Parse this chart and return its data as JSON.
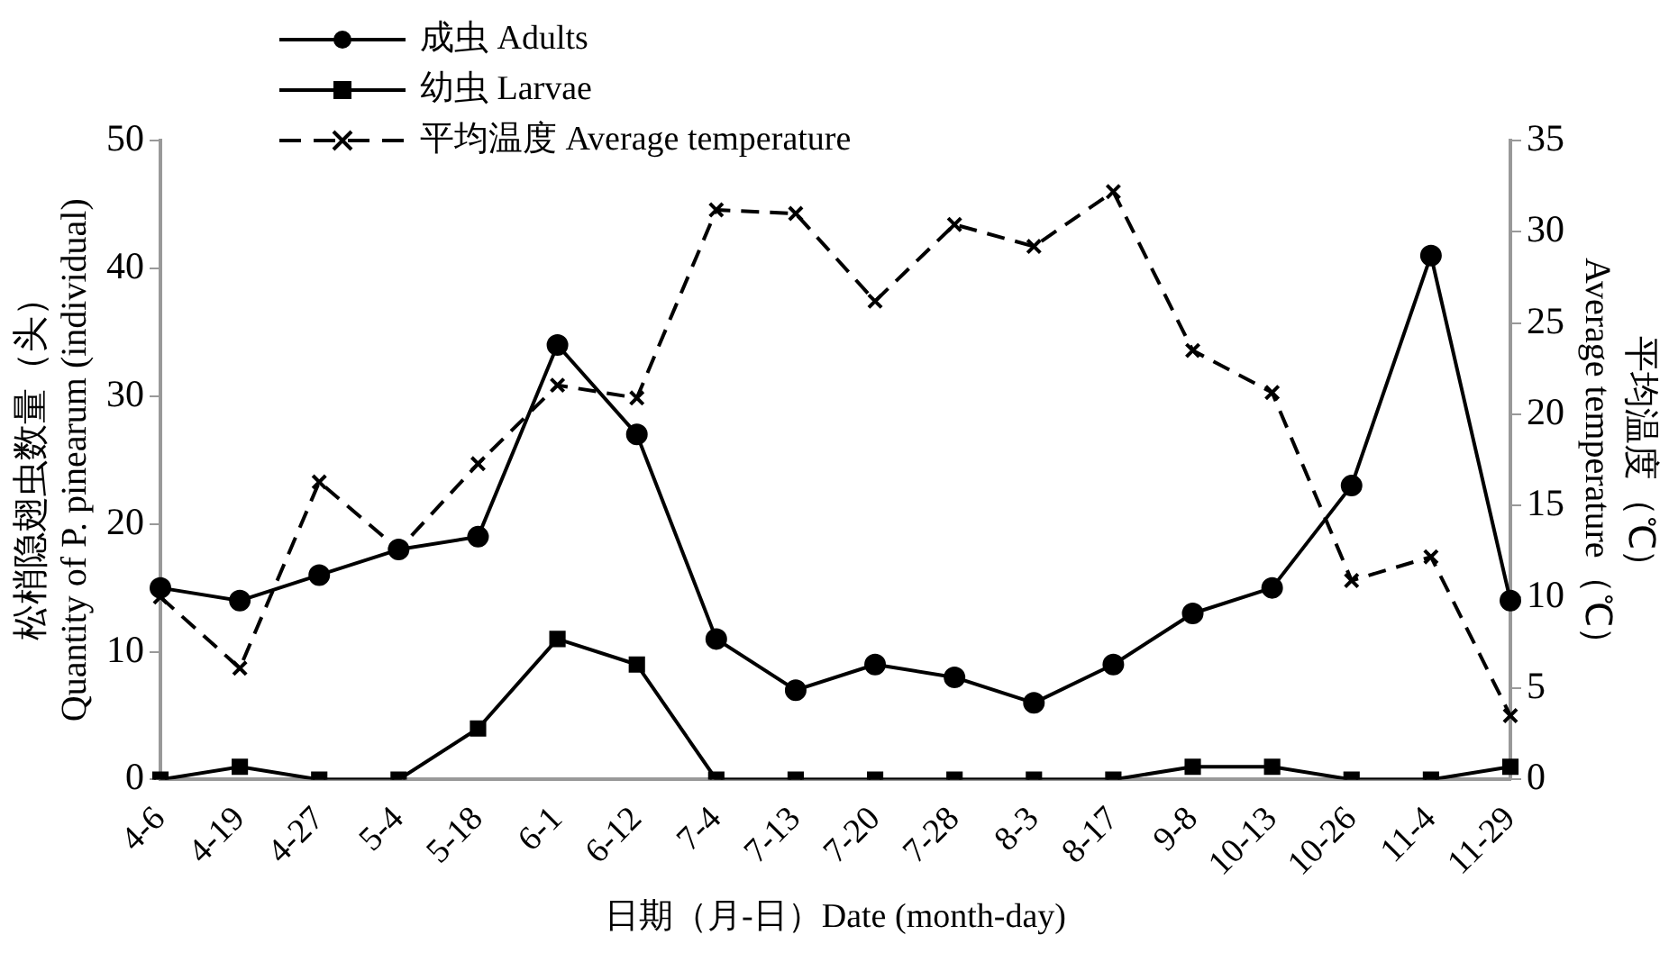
{
  "chart_data": {
    "type": "line",
    "xlabel": "日期（月-日）Date (month-day)",
    "ylabel": "松梢隐翅虫数量（头）\nQuantity of P. pinearum (individual)",
    "y2label": "平均温度（℃）\nAverage temperature（℃）",
    "categories": [
      "4-6",
      "4-19",
      "4-27",
      "5-4",
      "5-18",
      "6-1",
      "6-12",
      "7-4",
      "7-13",
      "7-20",
      "7-28",
      "8-3",
      "8-17",
      "9-8",
      "10-13",
      "10-26",
      "11-4",
      "11-29"
    ],
    "series": [
      {
        "name": "成虫 Adults",
        "color": "#000000",
        "marker": "circle",
        "line_style": "solid",
        "values": [
          15,
          14,
          16,
          18,
          19,
          34,
          27,
          11,
          7,
          9,
          8,
          6,
          9,
          13,
          15,
          23,
          41,
          14
        ]
      },
      {
        "name": "幼虫 Larvae",
        "color": "#000000",
        "marker": "square",
        "line_style": "solid",
        "values": [
          0,
          1,
          0,
          0,
          4,
          11,
          9,
          0,
          0,
          0,
          0,
          0,
          0,
          1,
          1,
          0,
          0,
          1
        ]
      },
      {
        "name": "平均温度 Average temperature",
        "color": "#000000",
        "marker": "cross",
        "line_style": "dashed",
        "axis": "y2",
        "values": [
          10.0,
          6.1,
          16.3,
          12.6,
          17.3,
          21.6,
          20.9,
          31.2,
          31.0,
          26.2,
          30.4,
          29.2,
          32.2,
          23.5,
          21.2,
          10.9,
          12.2,
          3.5
        ]
      }
    ],
    "ylim": [
      0,
      50
    ],
    "yticks": [
      0,
      10,
      20,
      30,
      40,
      50
    ],
    "y2lim": [
      0,
      35
    ],
    "y2ticks": [
      0,
      5,
      10,
      15,
      20,
      25,
      30,
      35
    ],
    "grid": false,
    "legend": "top left"
  }
}
